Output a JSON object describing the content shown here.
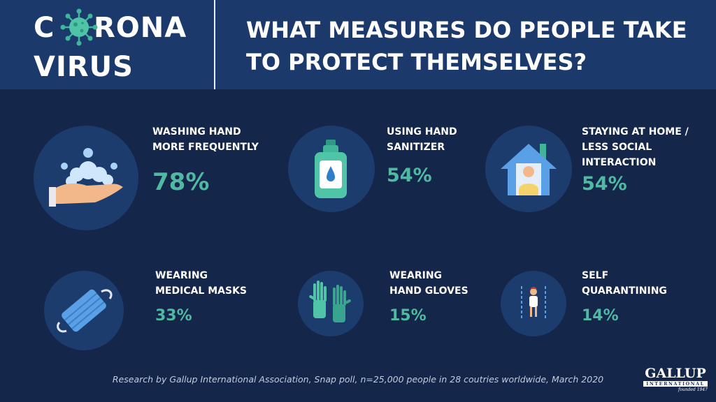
{
  "logo": {
    "line1_pre": "C",
    "line1_post": "RONA",
    "line2": "VIRUS"
  },
  "headline": "WHAT MEASURES DO PEOPLE TAKE TO PROTECT THEMSELVES?",
  "measures": [
    {
      "label": "WASHING HAND\nMORE FREQUENTLY",
      "percent": "78%",
      "icon": "hand-washing-icon"
    },
    {
      "label": "USING HAND\nSANITIZER",
      "percent": "54%",
      "icon": "hand-sanitizer-icon"
    },
    {
      "label": "STAYING AT HOME /\nLESS SOCIAL\nINTERACTION",
      "percent": "54%",
      "icon": "house-icon"
    },
    {
      "label": "WEARING\nMEDICAL MASKS",
      "percent": "33%",
      "icon": "medical-mask-icon"
    },
    {
      "label": "WEARING\nHAND GLOVES",
      "percent": "15%",
      "icon": "gloves-icon"
    },
    {
      "label": "SELF\nQUARANTINING",
      "percent": "14%",
      "icon": "quarantine-icon"
    }
  ],
  "footnote": "Research by Gallup International Association, Snap poll, n=25,000 people in 28 coutries worldwide, March 2020",
  "brand": {
    "name": "GALLUP",
    "sub": "INTERNATIONAL",
    "founded": "founded 1947"
  },
  "colors": {
    "background": "#14264a",
    "header": "#1b3a6b",
    "circle": "#1d3c6e",
    "accent": "#4fb9a1"
  }
}
